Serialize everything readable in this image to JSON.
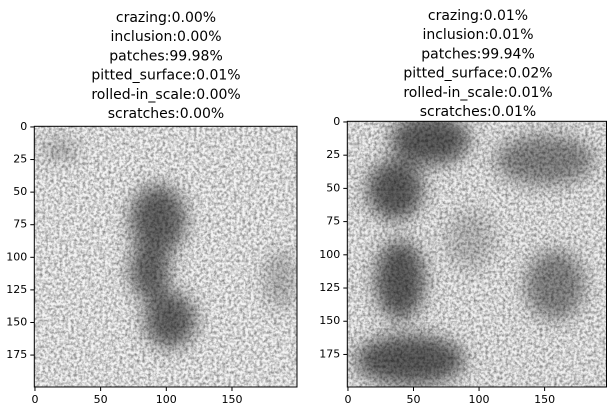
{
  "chart_data": [
    {
      "type": "image",
      "title": [
        "crazing:0.00%",
        "inclusion:0.00%",
        "patches:99.98%",
        "pitted_surface:0.01%",
        "rolled-in_scale:0.00%",
        "scratches:0.00%"
      ],
      "xlim": [
        -0.5,
        199.5
      ],
      "ylim": [
        199.5,
        -0.5
      ],
      "xticks": [
        0,
        50,
        100,
        150
      ],
      "yticks": [
        0,
        25,
        50,
        75,
        100,
        125,
        150,
        175
      ]
    },
    {
      "type": "image",
      "title": [
        "crazing:0.01%",
        "inclusion:0.01%",
        "patches:99.94%",
        "pitted_surface:0.02%",
        "rolled-in_scale:0.01%",
        "scratches:0.01%"
      ],
      "xlim": [
        -0.5,
        199.5
      ],
      "ylim": [
        199.5,
        -0.5
      ],
      "xticks": [
        0,
        50,
        100,
        150
      ],
      "yticks": [
        0,
        25,
        50,
        75,
        100,
        125,
        150,
        175
      ]
    }
  ]
}
